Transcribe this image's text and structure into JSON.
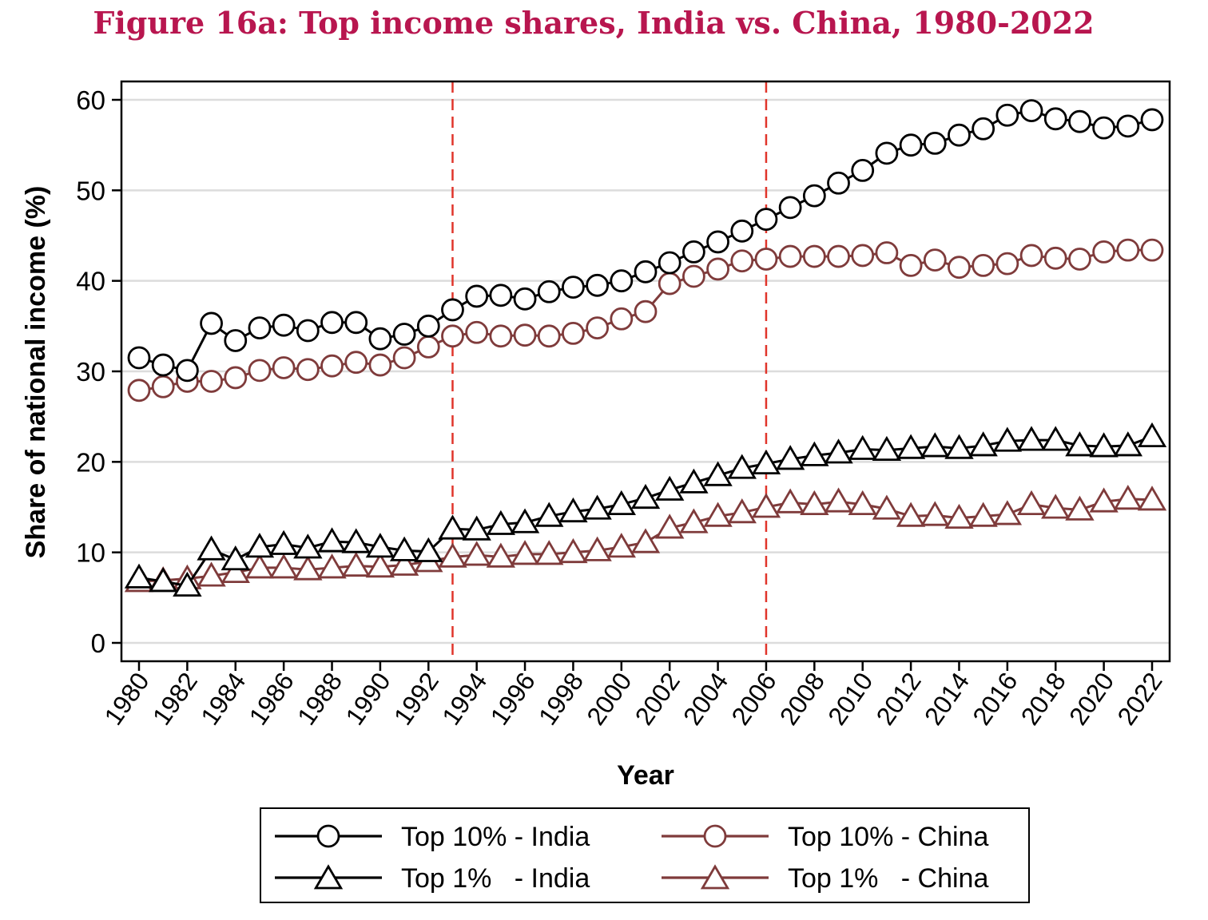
{
  "chart_data": {
    "type": "line",
    "title": "Figure 16a: Top income shares, India vs. China, 1980-2022",
    "xlabel": "Year",
    "ylabel": "Share of national income (%)",
    "ylim": [
      0,
      60
    ],
    "yticks": [
      0,
      10,
      20,
      30,
      40,
      50,
      60
    ],
    "xlim": [
      1980,
      2022
    ],
    "xticks": [
      1980,
      1982,
      1984,
      1986,
      1988,
      1990,
      1992,
      1994,
      1996,
      1998,
      2000,
      2002,
      2004,
      2006,
      2008,
      2010,
      2012,
      2014,
      2016,
      2018,
      2020,
      2022
    ],
    "grid": "horizontal",
    "reference_lines": [
      1993,
      2006
    ],
    "reference_line_color": "#e0352b",
    "x": [
      1980,
      1981,
      1982,
      1983,
      1984,
      1985,
      1986,
      1987,
      1988,
      1989,
      1990,
      1991,
      1992,
      1993,
      1994,
      1995,
      1996,
      1997,
      1998,
      1999,
      2000,
      2001,
      2002,
      2003,
      2004,
      2005,
      2006,
      2007,
      2008,
      2009,
      2010,
      2011,
      2012,
      2013,
      2014,
      2015,
      2016,
      2017,
      2018,
      2019,
      2020,
      2021,
      2022
    ],
    "series": [
      {
        "name": "Top 10% - India",
        "legend_label": "Top 10% - India",
        "marker": "circle",
        "color": "#000000",
        "values": [
          31.5,
          30.7,
          30.1,
          35.3,
          33.4,
          34.8,
          35.1,
          34.5,
          35.4,
          35.4,
          33.6,
          34.1,
          35.0,
          36.8,
          38.3,
          38.4,
          38.0,
          38.8,
          39.3,
          39.5,
          40.0,
          41.0,
          42.0,
          43.2,
          44.3,
          45.5,
          46.8,
          48.1,
          49.4,
          50.8,
          52.2,
          54.1,
          55.0,
          55.2,
          56.1,
          56.8,
          58.3,
          58.8,
          57.9,
          57.6,
          56.9,
          57.1,
          57.8
        ]
      },
      {
        "name": "Top 1% - India",
        "legend_label": "Top 1%   - India",
        "marker": "triangle",
        "color": "#000000",
        "values": [
          7.2,
          6.8,
          6.3,
          10.3,
          9.2,
          10.6,
          10.9,
          10.5,
          11.2,
          11.1,
          10.6,
          10.2,
          10.1,
          12.6,
          12.5,
          13.1,
          13.3,
          14.0,
          14.5,
          14.8,
          15.3,
          16.0,
          16.9,
          17.7,
          18.5,
          19.3,
          19.8,
          20.3,
          20.7,
          21.0,
          21.4,
          21.3,
          21.5,
          21.7,
          21.5,
          21.8,
          22.3,
          22.4,
          22.4,
          21.8,
          21.7,
          21.8,
          22.8
        ]
      },
      {
        "name": "Top 10% - China",
        "legend_label": "Top 10% - China",
        "marker": "circle",
        "color": "#7f3b3b",
        "values": [
          27.9,
          28.3,
          28.9,
          28.9,
          29.3,
          30.1,
          30.4,
          30.2,
          30.6,
          31.0,
          30.7,
          31.5,
          32.7,
          33.9,
          34.3,
          33.9,
          34.0,
          33.9,
          34.2,
          34.8,
          35.8,
          36.6,
          39.7,
          40.5,
          41.3,
          42.2,
          42.4,
          42.7,
          42.7,
          42.7,
          42.8,
          43.1,
          41.7,
          42.3,
          41.5,
          41.7,
          41.9,
          42.8,
          42.5,
          42.4,
          43.2,
          43.4,
          43.4
        ]
      },
      {
        "name": "Top 1% - China",
        "legend_label": "Top 1%   - China",
        "marker": "triangle",
        "color": "#7f3b3b",
        "values": [
          6.8,
          6.9,
          7.1,
          7.4,
          7.8,
          8.3,
          8.3,
          8.1,
          8.3,
          8.5,
          8.4,
          8.6,
          9.0,
          9.5,
          9.7,
          9.5,
          9.8,
          9.8,
          10.0,
          10.2,
          10.6,
          11.1,
          12.7,
          13.3,
          14.0,
          14.4,
          15.0,
          15.5,
          15.3,
          15.6,
          15.3,
          14.8,
          14.0,
          14.1,
          13.8,
          14.0,
          14.2,
          15.3,
          14.9,
          14.7,
          15.6,
          15.9,
          15.8
        ]
      }
    ]
  }
}
